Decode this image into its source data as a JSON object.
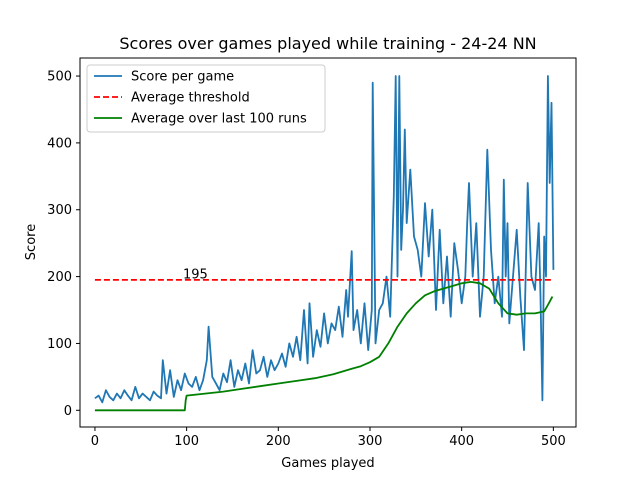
{
  "chart_data": {
    "type": "line",
    "title": "Scores over games played while training - 24-24 NN",
    "xlabel": "Games played",
    "ylabel": "Score",
    "xlim": [
      -16.3,
      524.7
    ],
    "ylim": [
      -25,
      527
    ],
    "xticks": [
      0,
      100,
      200,
      300,
      400,
      500
    ],
    "yticks": [
      0,
      100,
      200,
      300,
      400,
      500
    ],
    "grid": false,
    "legend_position": "top-left",
    "annotations": [
      {
        "text": "195",
        "x": 96,
        "y": 197
      }
    ],
    "series": [
      {
        "name": "Score per game",
        "color": "#1f77b4",
        "style": "solid",
        "x": [
          0,
          4,
          8,
          12,
          16,
          20,
          24,
          28,
          32,
          36,
          40,
          44,
          48,
          52,
          56,
          60,
          64,
          68,
          72,
          74,
          78,
          82,
          86,
          90,
          94,
          98,
          102,
          106,
          110,
          114,
          118,
          122,
          124,
          128,
          132,
          136,
          140,
          144,
          148,
          152,
          156,
          160,
          164,
          168,
          172,
          176,
          180,
          184,
          188,
          192,
          196,
          200,
          204,
          208,
          212,
          216,
          220,
          224,
          228,
          232,
          234,
          238,
          242,
          246,
          250,
          254,
          258,
          262,
          266,
          270,
          274,
          276,
          280,
          282,
          286,
          290,
          294,
          298,
          302,
          303,
          306,
          310,
          314,
          318,
          322,
          326,
          328,
          330,
          332,
          334,
          336,
          338,
          340,
          344,
          348,
          352,
          356,
          360,
          364,
          368,
          372,
          376,
          380,
          384,
          388,
          392,
          396,
          400,
          404,
          406,
          408,
          412,
          416,
          420,
          424,
          428,
          432,
          436,
          440,
          444,
          446,
          448,
          450,
          452,
          456,
          460,
          464,
          468,
          472,
          476,
          480,
          484,
          486,
          488,
          490,
          492,
          494,
          496,
          498,
          500
        ],
        "y": [
          18,
          22,
          12,
          30,
          20,
          15,
          25,
          18,
          30,
          22,
          15,
          35,
          18,
          25,
          20,
          15,
          28,
          22,
          18,
          75,
          25,
          60,
          20,
          45,
          30,
          55,
          40,
          35,
          50,
          30,
          45,
          75,
          125,
          50,
          40,
          30,
          55,
          42,
          75,
          35,
          60,
          45,
          70,
          40,
          90,
          55,
          60,
          80,
          50,
          75,
          60,
          70,
          85,
          65,
          100,
          80,
          110,
          75,
          150,
          70,
          160,
          80,
          120,
          95,
          145,
          100,
          130,
          120,
          155,
          110,
          180,
          140,
          238,
          120,
          150,
          100,
          160,
          90,
          150,
          490,
          100,
          150,
          160,
          200,
          140,
          320,
          500,
          200,
          500,
          240,
          300,
          420,
          280,
          360,
          260,
          240,
          200,
          310,
          230,
          300,
          150,
          270,
          160,
          230,
          140,
          250,
          210,
          160,
          200,
          280,
          340,
          200,
          280,
          140,
          200,
          390,
          240,
          160,
          200,
          140,
          345,
          200,
          280,
          130,
          200,
          270,
          170,
          90,
          340,
          200,
          180,
          280,
          170,
          15,
          260,
          200,
          500,
          340,
          460,
          210
        ]
      },
      {
        "name": "Average threshold",
        "color": "#ff0000",
        "style": "dashed",
        "x": [
          0,
          499
        ],
        "y": [
          195,
          195
        ]
      },
      {
        "name": "Average over last 100 runs",
        "color": "#008000",
        "style": "solid",
        "x": [
          0,
          98,
          99,
          100,
          120,
          140,
          160,
          180,
          200,
          220,
          240,
          260,
          280,
          290,
          300,
          310,
          320,
          330,
          340,
          350,
          360,
          370,
          380,
          390,
          400,
          410,
          420,
          430,
          440,
          450,
          460,
          470,
          480,
          490,
          495,
          499
        ],
        "y": [
          0,
          0,
          15,
          22,
          25,
          28,
          32,
          36,
          40,
          44,
          48,
          54,
          62,
          66,
          72,
          80,
          100,
          125,
          145,
          160,
          172,
          178,
          182,
          186,
          190,
          192,
          190,
          182,
          160,
          145,
          143,
          145,
          145,
          148,
          160,
          170
        ]
      }
    ]
  }
}
